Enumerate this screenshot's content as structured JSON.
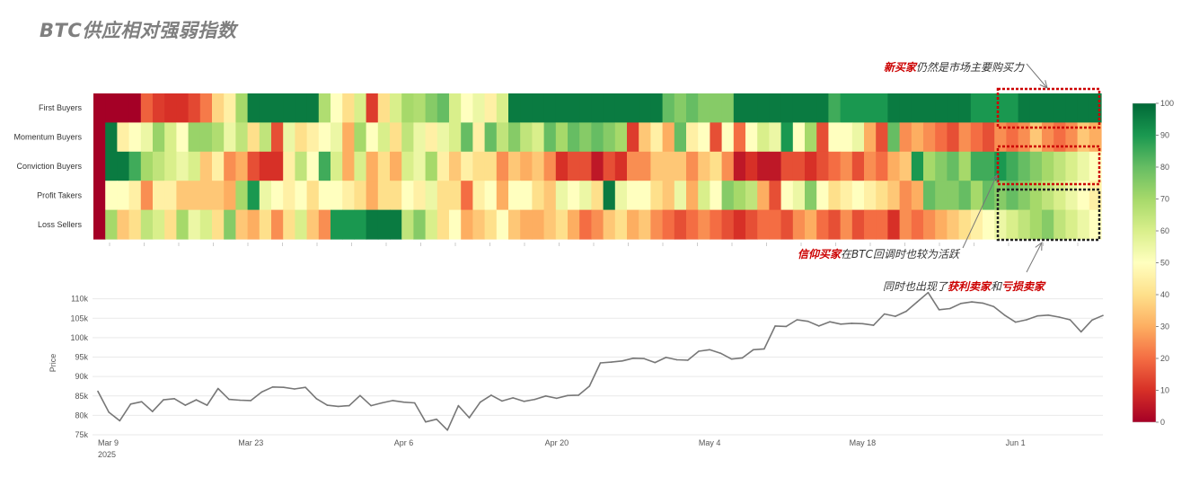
{
  "title": "BTC供应相对强弱指数",
  "annotations": {
    "a1": {
      "hl": "新买家",
      "rest": "仍然是市场主要购买力"
    },
    "a2": {
      "hl": "信仰买家",
      "rest": "在BTC回调时也较为活跃"
    },
    "a3": {
      "pre": "同时也出现了",
      "hl1": "获利卖家",
      "mid": "和",
      "hl2": "亏损卖家"
    }
  },
  "colors": {
    "low": "#a50026",
    "mid": "#ffffbf",
    "high": "#006837",
    "line": "#777777",
    "box_red": "#cc0000",
    "box_black": "#222222"
  },
  "chart_data": [
    {
      "type": "heatmap",
      "rows": [
        "First Buyers",
        "Momentum Buyers",
        "Conviction Buyers",
        "Profit Takers",
        "Loss Sellers"
      ],
      "colorbar": {
        "min": 0,
        "max": 100,
        "ticks": [
          0,
          10,
          20,
          30,
          40,
          50,
          60,
          70,
          80,
          90,
          100
        ]
      },
      "values": [
        [
          0,
          0,
          0,
          0,
          18,
          12,
          10,
          10,
          14,
          22,
          38,
          45,
          70,
          96,
          96,
          96,
          96,
          96,
          96,
          68,
          50,
          40,
          60,
          12,
          40,
          60,
          70,
          68,
          75,
          80,
          60,
          50,
          55,
          45,
          60,
          96,
          96,
          96,
          96,
          96,
          96,
          96,
          96,
          96,
          96,
          96,
          96,
          96,
          80,
          75,
          80,
          75,
          75,
          75,
          96,
          96,
          96,
          96,
          96,
          96,
          96,
          96,
          85,
          90,
          90,
          90,
          90,
          96,
          96,
          96,
          96,
          96,
          96,
          96,
          90,
          90,
          90,
          90,
          96,
          96,
          96,
          96,
          96,
          96,
          96
        ],
        [
          0,
          96,
          45,
          50,
          55,
          72,
          60,
          50,
          72,
          72,
          68,
          55,
          65,
          40,
          65,
          15,
          55,
          40,
          45,
          50,
          55,
          30,
          70,
          50,
          60,
          40,
          65,
          55,
          45,
          55,
          60,
          80,
          45,
          80,
          65,
          75,
          65,
          60,
          80,
          70,
          80,
          75,
          80,
          75,
          70,
          12,
          35,
          45,
          30,
          80,
          45,
          50,
          15,
          50,
          20,
          50,
          60,
          55,
          90,
          50,
          70,
          15,
          50,
          50,
          55,
          30,
          15,
          80,
          25,
          30,
          25,
          20,
          15,
          25,
          20,
          15,
          25,
          20,
          25,
          35,
          25,
          20,
          25,
          35,
          30
        ],
        [
          0,
          96,
          96,
          85,
          70,
          65,
          60,
          55,
          60,
          35,
          45,
          25,
          30,
          15,
          10,
          10,
          45,
          65,
          50,
          85,
          60,
          30,
          60,
          30,
          40,
          30,
          60,
          55,
          70,
          45,
          35,
          45,
          40,
          40,
          25,
          35,
          30,
          35,
          25,
          10,
          15,
          15,
          5,
          15,
          10,
          25,
          25,
          35,
          35,
          35,
          25,
          35,
          40,
          25,
          5,
          10,
          5,
          5,
          15,
          15,
          10,
          15,
          20,
          25,
          15,
          25,
          20,
          30,
          35,
          90,
          70,
          75,
          80,
          70,
          85,
          85,
          90,
          85,
          80,
          75,
          70,
          65,
          60,
          55,
          50
        ],
        [
          0,
          50,
          50,
          45,
          25,
          45,
          45,
          35,
          35,
          35,
          35,
          30,
          70,
          90,
          55,
          50,
          45,
          50,
          40,
          50,
          50,
          45,
          40,
          30,
          40,
          40,
          50,
          45,
          55,
          40,
          40,
          20,
          45,
          50,
          30,
          50,
          50,
          40,
          35,
          55,
          50,
          55,
          40,
          96,
          55,
          50,
          50,
          40,
          35,
          55,
          30,
          60,
          50,
          75,
          70,
          65,
          30,
          15,
          50,
          55,
          75,
          50,
          40,
          45,
          50,
          45,
          40,
          35,
          25,
          30,
          80,
          75,
          75,
          80,
          70,
          80,
          75,
          80,
          75,
          70,
          65,
          60,
          55,
          50,
          45
        ],
        [
          0,
          70,
          35,
          40,
          65,
          60,
          40,
          70,
          55,
          60,
          40,
          75,
          35,
          30,
          40,
          25,
          40,
          60,
          35,
          25,
          90,
          90,
          90,
          96,
          96,
          96,
          65,
          75,
          60,
          40,
          50,
          30,
          35,
          40,
          50,
          35,
          30,
          30,
          35,
          40,
          30,
          20,
          25,
          35,
          40,
          30,
          35,
          25,
          20,
          15,
          20,
          25,
          20,
          15,
          10,
          15,
          20,
          20,
          15,
          25,
          30,
          20,
          15,
          25,
          15,
          20,
          20,
          10,
          25,
          20,
          25,
          30,
          35,
          40,
          45,
          50,
          55,
          60,
          65,
          70,
          75,
          65,
          60,
          55,
          50
        ]
      ]
    },
    {
      "type": "line",
      "ylabel": "Price",
      "ylim": [
        75000,
        112000
      ],
      "yticks": [
        75000,
        80000,
        85000,
        90000,
        95000,
        100000,
        105000,
        110000
      ],
      "yticklabels": [
        "75k",
        "80k",
        "85k",
        "90k",
        "95k",
        "100k",
        "105k",
        "110k"
      ],
      "xticks": [
        {
          "index": 0,
          "line1": "Mar 9",
          "line2": "2025"
        },
        {
          "index": 14,
          "line1": "Mar 23",
          "line2": ""
        },
        {
          "index": 28,
          "line1": "Apr 6",
          "line2": ""
        },
        {
          "index": 42,
          "line1": "Apr 20",
          "line2": ""
        },
        {
          "index": 56,
          "line1": "May 4",
          "line2": ""
        },
        {
          "index": 70,
          "line1": "May 18",
          "line2": ""
        },
        {
          "index": 84,
          "line1": "Jun 1",
          "line2": ""
        }
      ],
      "values": [
        86200,
        80800,
        78600,
        82900,
        83500,
        81000,
        84000,
        84300,
        82600,
        84000,
        82600,
        86900,
        84100,
        83900,
        83800,
        86000,
        87300,
        87200,
        86800,
        87200,
        84300,
        82600,
        82300,
        82500,
        85100,
        82500,
        83200,
        83800,
        83400,
        83200,
        78300,
        79000,
        76200,
        82500,
        79400,
        83400,
        85200,
        83700,
        84500,
        83600,
        84100,
        85000,
        84400,
        85100,
        85200,
        87500,
        93500,
        93700,
        94000,
        94700,
        94600,
        93600,
        94900,
        94300,
        94200,
        96500,
        96900,
        96000,
        94500,
        94800,
        96900,
        97100,
        103000,
        102900,
        104600,
        104200,
        103000,
        104100,
        103500,
        103700,
        103600,
        103200,
        106100,
        105500,
        106800,
        109200,
        111600,
        107200,
        107500,
        108800,
        109200,
        108900,
        108000,
        105800,
        104000,
        104600,
        105600,
        105800,
        105300,
        104600,
        101500,
        104500,
        105700
      ]
    }
  ]
}
